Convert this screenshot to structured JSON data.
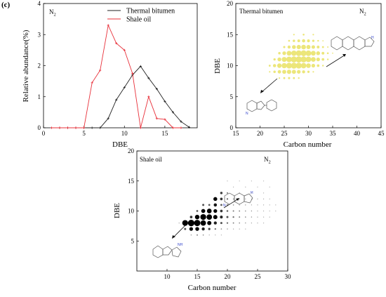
{
  "panel_label": "(c)",
  "colors": {
    "thermal": "#222222",
    "shale": "#e8303a",
    "yellow": "#ece67a",
    "black": "#000000"
  },
  "chart_data": [
    {
      "id": "line",
      "type": "line",
      "title": "",
      "annotation": "N2",
      "xlabel": "DBE",
      "ylabel": "Relative abundance(%)",
      "xlim": [
        0,
        19
      ],
      "ylim": [
        0,
        4
      ],
      "xticks": [
        0,
        5,
        10,
        15
      ],
      "yticks": [
        0,
        1,
        2,
        3,
        4
      ],
      "legend_position": "top-right",
      "series": [
        {
          "name": "Thermal bitumen",
          "color": "#222222",
          "marker": "plus",
          "x": [
            2,
            3,
            4,
            5,
            6,
            7,
            8,
            9,
            10,
            11,
            12,
            13,
            14,
            15,
            16,
            17,
            18
          ],
          "values": [
            0,
            0,
            0,
            0,
            0,
            0,
            0.3,
            0.9,
            1.3,
            1.7,
            1.98,
            1.6,
            1.25,
            0.85,
            0.5,
            0.2,
            0.02
          ]
        },
        {
          "name": "Shale oil",
          "color": "#e8303a",
          "marker": "plus",
          "x": [
            1,
            2,
            3,
            4,
            5,
            6,
            7,
            8,
            9,
            10,
            11,
            12,
            13,
            14,
            15,
            16,
            17
          ],
          "values": [
            0,
            0,
            0,
            0,
            0,
            1.45,
            1.85,
            3.3,
            2.72,
            2.5,
            1.75,
            0,
            1.0,
            0.3,
            0.27,
            0,
            0
          ]
        }
      ]
    },
    {
      "id": "thermal_bubble",
      "type": "scatter",
      "title": "",
      "annotation": "N2",
      "inner_label": "Thermal bitumen",
      "xlabel": "Carbon number",
      "ylabel": "DBE",
      "xlim": [
        15,
        45
      ],
      "ylim": [
        0,
        20
      ],
      "xticks": [
        15,
        20,
        25,
        30,
        35,
        40,
        45
      ],
      "yticks": [
        0,
        5,
        10,
        15,
        20
      ],
      "color": "#ece67a",
      "note": "bubble size ~ relative abundance",
      "points": [
        [
          27,
          15,
          1
        ],
        [
          29,
          15,
          1.2
        ],
        [
          31,
          15,
          1
        ],
        [
          26,
          14,
          1.2
        ],
        [
          27,
          14,
          1.6
        ],
        [
          28,
          14,
          1.8
        ],
        [
          29,
          14,
          2.1
        ],
        [
          30,
          14,
          1.9
        ],
        [
          31,
          14,
          1.5
        ],
        [
          32,
          14,
          1.1
        ],
        [
          33,
          14,
          0.8
        ],
        [
          25,
          13,
          1.4
        ],
        [
          26,
          13,
          2.0
        ],
        [
          27,
          13,
          2.5
        ],
        [
          28,
          13,
          2.8
        ],
        [
          29,
          13,
          3
        ],
        [
          30,
          13,
          2.7
        ],
        [
          31,
          13,
          2.3
        ],
        [
          32,
          13,
          1.8
        ],
        [
          33,
          13,
          1.3
        ],
        [
          34,
          13,
          0.9
        ],
        [
          24,
          12,
          1.6
        ],
        [
          25,
          12,
          2.4
        ],
        [
          26,
          12,
          3.1
        ],
        [
          27,
          12,
          3.5
        ],
        [
          28,
          12,
          3.7
        ],
        [
          29,
          12,
          3.8
        ],
        [
          30,
          12,
          3.6
        ],
        [
          31,
          12,
          3.1
        ],
        [
          32,
          12,
          2.5
        ],
        [
          33,
          12,
          1.8
        ],
        [
          34,
          12,
          1.2
        ],
        [
          35,
          12,
          0.8
        ],
        [
          23,
          11,
          1.5
        ],
        [
          24,
          11,
          2.5
        ],
        [
          25,
          11,
          3.2
        ],
        [
          26,
          11,
          3.6
        ],
        [
          27,
          11,
          3.9
        ],
        [
          28,
          11,
          4
        ],
        [
          29,
          11,
          3.9
        ],
        [
          30,
          11,
          3.6
        ],
        [
          31,
          11,
          3.1
        ],
        [
          32,
          11,
          2.4
        ],
        [
          33,
          11,
          1.7
        ],
        [
          34,
          11,
          1.1
        ],
        [
          22,
          10,
          1.3
        ],
        [
          23,
          10,
          2.1
        ],
        [
          24,
          10,
          2.9
        ],
        [
          25,
          10,
          3.4
        ],
        [
          26,
          10,
          3.7
        ],
        [
          27,
          10,
          3.9
        ],
        [
          28,
          10,
          3.8
        ],
        [
          29,
          10,
          3.5
        ],
        [
          30,
          10,
          3.0
        ],
        [
          31,
          10,
          2.4
        ],
        [
          32,
          10,
          1.7
        ],
        [
          33,
          10,
          1.1
        ],
        [
          22,
          9,
          1.0
        ],
        [
          23,
          9,
          1.6
        ],
        [
          24,
          9,
          2.2
        ],
        [
          25,
          9,
          2.6
        ],
        [
          26,
          9,
          2.8
        ],
        [
          27,
          9,
          2.7
        ],
        [
          28,
          9,
          2.4
        ],
        [
          29,
          9,
          2.0
        ],
        [
          30,
          9,
          1.5
        ],
        [
          31,
          9,
          1.0
        ],
        [
          24,
          8,
          1.0
        ],
        [
          25,
          8,
          1.3
        ],
        [
          26,
          8,
          1.4
        ],
        [
          27,
          8,
          1.3
        ],
        [
          28,
          8,
          1.1
        ]
      ]
    },
    {
      "id": "shale_bubble",
      "type": "scatter",
      "title": "",
      "annotation": "N2",
      "inner_label": "Shale oil",
      "xlabel": "Carbon number",
      "ylabel": "DBE",
      "xlim": [
        5,
        30
      ],
      "ylim": [
        0,
        20
      ],
      "xticks": [
        10,
        15,
        20,
        25,
        30
      ],
      "yticks": [
        5,
        10,
        15,
        20
      ],
      "color": "#000000",
      "note": "bubble size ~ relative abundance",
      "points": [
        [
          20,
          15,
          0.4
        ],
        [
          22,
          15,
          0.3
        ],
        [
          24,
          15,
          0.3
        ],
        [
          26,
          15,
          0.3
        ],
        [
          21,
          14,
          0.4
        ],
        [
          23,
          14,
          0.4
        ],
        [
          25,
          14,
          0.3
        ],
        [
          27,
          14,
          0.3
        ],
        [
          19,
          13,
          1.5
        ],
        [
          20,
          13,
          0.9
        ],
        [
          22,
          13,
          0.6
        ],
        [
          24,
          13,
          0.4
        ],
        [
          26,
          13,
          0.3
        ],
        [
          18,
          12,
          2.4
        ],
        [
          19,
          12,
          1.6
        ],
        [
          20,
          12,
          1.0
        ],
        [
          21,
          12,
          0.7
        ],
        [
          22,
          12,
          0.6
        ],
        [
          23,
          12,
          0.5
        ],
        [
          24,
          12,
          0.5
        ],
        [
          25,
          12,
          0.4
        ],
        [
          26,
          12,
          0.4
        ],
        [
          27,
          12,
          0.3
        ],
        [
          16,
          11,
          1.3
        ],
        [
          17,
          11,
          1.2
        ],
        [
          18,
          11,
          2.0
        ],
        [
          19,
          11,
          1.2
        ],
        [
          20,
          11,
          0.9
        ],
        [
          21,
          11,
          0.7
        ],
        [
          22,
          11,
          0.6
        ],
        [
          23,
          11,
          0.6
        ],
        [
          24,
          11,
          0.5
        ],
        [
          25,
          11,
          0.4
        ],
        [
          26,
          11,
          0.4
        ],
        [
          27,
          11,
          0.3
        ],
        [
          28,
          11,
          0.3
        ],
        [
          15,
          10,
          1.2
        ],
        [
          16,
          10,
          2.5
        ],
        [
          17,
          10,
          2.9
        ],
        [
          18,
          10,
          2.3
        ],
        [
          19,
          10,
          1.6
        ],
        [
          20,
          10,
          1.1
        ],
        [
          21,
          10,
          0.9
        ],
        [
          22,
          10,
          0.8
        ],
        [
          23,
          10,
          0.7
        ],
        [
          24,
          10,
          0.6
        ],
        [
          25,
          10,
          0.5
        ],
        [
          26,
          10,
          0.4
        ],
        [
          27,
          10,
          0.3
        ],
        [
          28,
          10,
          0.3
        ],
        [
          14,
          9,
          1.6
        ],
        [
          15,
          9,
          2.8
        ],
        [
          16,
          9,
          3.6
        ],
        [
          17,
          9,
          3.4
        ],
        [
          18,
          9,
          2.6
        ],
        [
          19,
          9,
          1.8
        ],
        [
          20,
          9,
          1.3
        ],
        [
          21,
          9,
          1.0
        ],
        [
          22,
          9,
          0.8
        ],
        [
          23,
          9,
          0.7
        ],
        [
          24,
          9,
          0.6
        ],
        [
          25,
          9,
          0.5
        ],
        [
          26,
          9,
          0.4
        ],
        [
          27,
          9,
          0.3
        ],
        [
          12,
          8,
          0.4
        ],
        [
          13,
          8,
          3.6
        ],
        [
          14,
          8,
          4.0
        ],
        [
          15,
          8,
          3.9
        ],
        [
          16,
          8,
          3.4
        ],
        [
          17,
          8,
          2.6
        ],
        [
          18,
          8,
          1.9
        ],
        [
          19,
          8,
          1.3
        ],
        [
          20,
          8,
          1.0
        ],
        [
          21,
          8,
          0.8
        ],
        [
          22,
          8,
          0.7
        ],
        [
          23,
          8,
          0.6
        ],
        [
          24,
          8,
          0.5
        ],
        [
          25,
          8,
          0.4
        ],
        [
          26,
          8,
          0.3
        ],
        [
          13,
          7,
          1.3
        ],
        [
          14,
          7,
          2.3
        ],
        [
          15,
          7,
          2.4
        ],
        [
          16,
          7,
          1.9
        ],
        [
          17,
          7,
          1.4
        ],
        [
          18,
          7,
          1.0
        ],
        [
          19,
          7,
          0.7
        ],
        [
          20,
          7,
          0.6
        ],
        [
          21,
          7,
          0.5
        ],
        [
          22,
          7,
          0.4
        ],
        [
          23,
          7,
          0.3
        ],
        [
          14,
          6,
          0.6
        ],
        [
          15,
          6,
          0.8
        ],
        [
          16,
          6,
          0.7
        ],
        [
          17,
          6,
          0.5
        ],
        [
          18,
          6,
          0.4
        ],
        [
          19,
          6,
          0.3
        ]
      ]
    }
  ]
}
